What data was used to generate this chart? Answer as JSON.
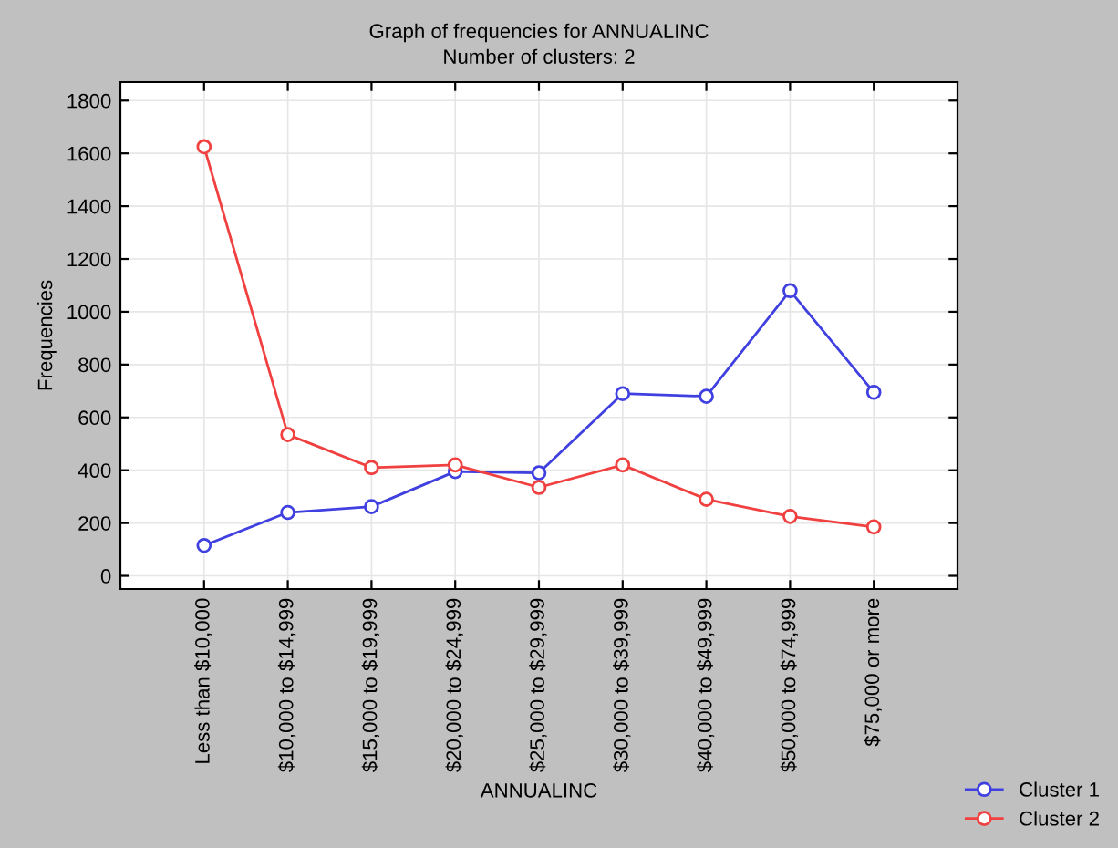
{
  "chart_data": {
    "type": "line",
    "title": "Graph of frequencies for ANNUALINC",
    "subtitle": "Number of clusters: 2",
    "xlabel": "ANNUALINC",
    "ylabel": "Frequencies",
    "categories": [
      "Less than $10,000",
      "$10,000 to $14,999",
      "$15,000 to $19,999",
      "$20,000 to $24,999",
      "$25,000 to $29,999",
      "$30,000 to $39,999",
      "$40,000 to $49,999",
      "$50,000 to $74,999",
      "$75,000 or more"
    ],
    "series": [
      {
        "name": "Cluster 1",
        "color": "#4040e0",
        "values": [
          115,
          240,
          262,
          395,
          390,
          690,
          680,
          1080,
          695
        ]
      },
      {
        "name": "Cluster 2",
        "color": "#f04040",
        "values": [
          1625,
          535,
          410,
          420,
          335,
          420,
          290,
          225,
          185
        ]
      }
    ],
    "ylim": [
      -50,
      1870
    ],
    "yticks": [
      0,
      200,
      400,
      600,
      800,
      1000,
      1200,
      1400,
      1600,
      1800
    ],
    "grid": true,
    "legend": "bottom right",
    "marker": "circle",
    "line_style": "solid"
  }
}
